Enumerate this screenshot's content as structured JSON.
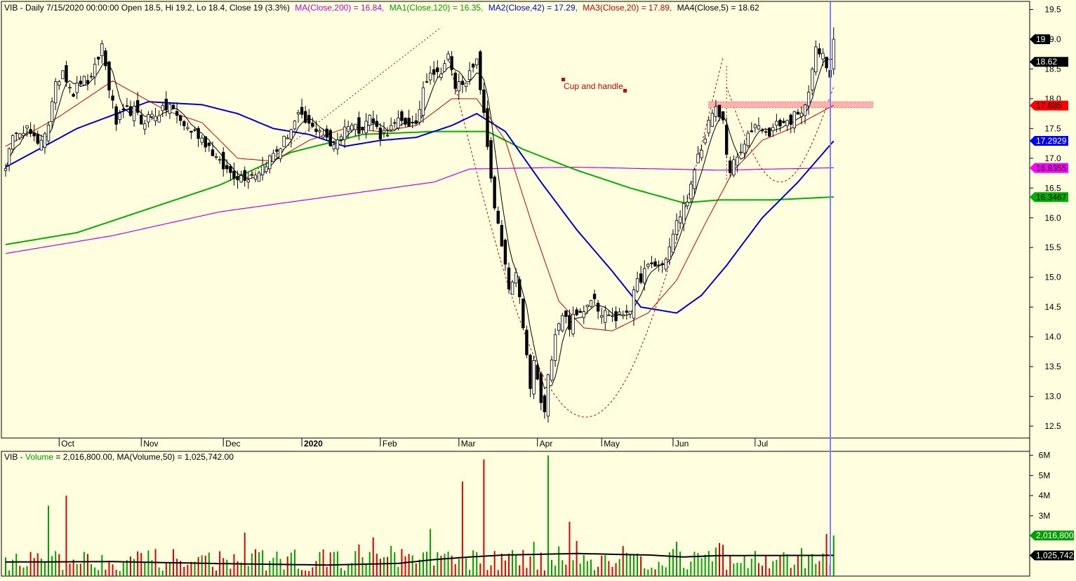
{
  "header": {
    "symbol_info": "VIB - Daily 7/15/2020 00:00:00 Open 18.5, Hi 19.2, Lo 18.4, Close 19 (3.3%)",
    "ma200": "MA(Close,200) = 16.84,",
    "ma120": "MA1(Close,120) = 16.35,",
    "ma42": "MA2(Close,42) = 17.29,",
    "ma20": "MA3(Close,20) = 17.89,",
    "ma5": "MA4(Close,5) = 18.62"
  },
  "volume_header": {
    "prefix": "VIB - ",
    "volume_label": "Volume",
    "volume_text": " = 2,016,800.00, MA(Volume,50) = 1,025,742.00"
  },
  "annotation": {
    "pattern_label": "Cup and handle"
  },
  "price_axis": {
    "ticks": [
      "19.5",
      "19.0",
      "18.5",
      "18.0",
      "17.5",
      "17.0",
      "16.5",
      "16.0",
      "15.5",
      "15.0",
      "14.5",
      "14.0",
      "13.5",
      "13.0",
      "12.5"
    ],
    "markers": [
      {
        "label": "19",
        "value": 19.0,
        "bg": "#000000",
        "fg": "#ffffff"
      },
      {
        "label": "18.62",
        "value": 18.62,
        "bg": "#000000",
        "fg": "#ffffff"
      },
      {
        "label": "17.885",
        "value": 17.885,
        "bg": "#ff0000",
        "fg": "#000000"
      },
      {
        "label": "17.2929",
        "value": 17.2929,
        "bg": "#0000ff",
        "fg": "#ffffff"
      },
      {
        "label": "16.8355",
        "value": 16.8355,
        "bg": "#ff00ff",
        "fg": "#000000"
      },
      {
        "label": "16.3467",
        "value": 16.3467,
        "bg": "#00b000",
        "fg": "#000000"
      }
    ]
  },
  "volume_axis": {
    "ticks": [
      "6M",
      "5M",
      "4M",
      "3M"
    ],
    "markers": [
      {
        "label": "2,016,800",
        "value": 2.0168,
        "bg": "#00a000",
        "fg": "#ffffff"
      },
      {
        "label": "1,025,742",
        "value": 1.0257,
        "bg": "#000000",
        "fg": "#ffffff"
      }
    ]
  },
  "x_axis": {
    "months": [
      "Oct",
      "Nov",
      "Dec",
      "2020",
      "Feb",
      "Mar",
      "Apr",
      "May",
      "Jun",
      "Jul"
    ],
    "month_start_index": [
      15,
      38,
      61,
      83,
      105,
      127,
      149,
      167,
      187,
      210
    ]
  },
  "colors": {
    "background": "#ffffe0",
    "ma200": "#cc00cc",
    "ma120": "#00b000",
    "ma42": "#0000cc",
    "ma20": "#cc0000",
    "ma5": "#000000",
    "volume_up": "#00a000",
    "volume_down": "#dd0000",
    "cursor": "#8080ff"
  },
  "chart_data": {
    "type": "candlestick",
    "title": "VIB - Daily",
    "x_range": [
      "2019-09-10",
      "2020-07-15"
    ],
    "y_range": [
      12.3,
      19.6
    ],
    "volume_range_millions": [
      0,
      6.2
    ],
    "bars": 233,
    "close_anchors": [
      [
        0,
        16.9
      ],
      [
        3,
        17.5
      ],
      [
        6,
        17.5
      ],
      [
        9,
        17.2
      ],
      [
        12,
        17.6
      ],
      [
        14,
        18.2
      ],
      [
        16,
        18.5
      ],
      [
        19,
        18.1
      ],
      [
        21,
        18.3
      ],
      [
        24,
        18.3
      ],
      [
        27,
        18.9
      ],
      [
        29,
        18.2
      ],
      [
        31,
        17.6
      ],
      [
        34,
        17.8
      ],
      [
        36,
        17.8
      ],
      [
        38,
        17.6
      ],
      [
        40,
        17.7
      ],
      [
        44,
        17.8
      ],
      [
        46,
        17.9
      ],
      [
        48,
        17.7
      ],
      [
        51,
        17.5
      ],
      [
        54,
        17.4
      ],
      [
        57,
        17.2
      ],
      [
        60,
        16.9
      ],
      [
        62,
        16.8
      ],
      [
        65,
        16.7
      ],
      [
        68,
        16.7
      ],
      [
        71,
        16.8
      ],
      [
        74,
        17.0
      ],
      [
        77,
        17.2
      ],
      [
        80,
        17.5
      ],
      [
        82,
        17.7
      ],
      [
        84,
        17.6
      ],
      [
        86,
        17.5
      ],
      [
        88,
        17.5
      ],
      [
        91,
        17.2
      ],
      [
        94,
        17.4
      ],
      [
        96,
        17.6
      ],
      [
        99,
        17.5
      ],
      [
        102,
        17.7
      ],
      [
        105,
        17.4
      ],
      [
        108,
        17.5
      ],
      [
        110,
        17.6
      ],
      [
        113,
        17.6
      ],
      [
        115,
        17.5
      ],
      [
        117,
        18.2
      ],
      [
        119,
        18.5
      ],
      [
        121,
        18.4
      ],
      [
        123,
        18.6
      ],
      [
        124,
        18.7
      ],
      [
        126,
        18.2
      ],
      [
        128,
        18.3
      ],
      [
        130,
        18.4
      ],
      [
        132,
        18.6
      ],
      [
        133,
        18.2
      ],
      [
        135,
        17.2
      ],
      [
        137,
        16.2
      ],
      [
        139,
        15.5
      ],
      [
        141,
        14.8
      ],
      [
        143,
        15.0
      ],
      [
        145,
        14.2
      ],
      [
        147,
        13.1
      ],
      [
        148,
        13.6
      ],
      [
        150,
        12.9
      ],
      [
        151,
        12.7
      ],
      [
        152,
        13.3
      ],
      [
        153,
        13.7
      ],
      [
        154,
        14.1
      ],
      [
        156,
        14.4
      ],
      [
        158,
        14.2
      ],
      [
        159,
        14.3
      ],
      [
        161,
        14.4
      ],
      [
        163,
        14.6
      ],
      [
        165,
        14.7
      ],
      [
        166,
        14.5
      ],
      [
        167,
        14.4
      ],
      [
        169,
        14.4
      ],
      [
        171,
        14.3
      ],
      [
        173,
        14.4
      ],
      [
        175,
        14.5
      ],
      [
        177,
        14.9
      ],
      [
        179,
        15.1
      ],
      [
        181,
        15.2
      ],
      [
        184,
        15.2
      ],
      [
        186,
        15.5
      ],
      [
        188,
        15.9
      ],
      [
        190,
        16.2
      ],
      [
        192,
        16.5
      ],
      [
        194,
        17.0
      ],
      [
        196,
        17.3
      ],
      [
        197,
        17.7
      ],
      [
        199,
        17.8
      ],
      [
        201,
        17.6
      ],
      [
        202,
        17.1
      ],
      [
        203,
        16.8
      ],
      [
        205,
        17.0
      ],
      [
        207,
        17.2
      ],
      [
        209,
        17.5
      ],
      [
        211,
        17.6
      ],
      [
        213,
        17.4
      ],
      [
        215,
        17.5
      ],
      [
        217,
        17.6
      ],
      [
        219,
        17.6
      ],
      [
        221,
        17.7
      ],
      [
        223,
        17.7
      ],
      [
        225,
        18.2
      ],
      [
        227,
        18.8
      ],
      [
        229,
        18.7
      ],
      [
        231,
        18.4
      ],
      [
        232,
        19.0
      ]
    ],
    "ma_lines": [
      {
        "name": "MA(Close,200)",
        "value_last": 16.84,
        "anchors": [
          [
            0,
            15.4
          ],
          [
            30,
            15.7
          ],
          [
            60,
            16.1
          ],
          [
            90,
            16.35
          ],
          [
            120,
            16.6
          ],
          [
            130,
            16.82
          ],
          [
            160,
            16.85
          ],
          [
            200,
            16.8
          ],
          [
            232,
            16.84
          ]
        ]
      },
      {
        "name": "MA1(Close,120)",
        "value_last": 16.35,
        "anchors": [
          [
            0,
            15.55
          ],
          [
            20,
            15.75
          ],
          [
            40,
            16.15
          ],
          [
            60,
            16.55
          ],
          [
            80,
            17.1
          ],
          [
            100,
            17.4
          ],
          [
            120,
            17.45
          ],
          [
            135,
            17.45
          ],
          [
            145,
            17.15
          ],
          [
            160,
            16.8
          ],
          [
            175,
            16.5
          ],
          [
            190,
            16.25
          ],
          [
            200,
            16.3
          ],
          [
            215,
            16.3
          ],
          [
            232,
            16.35
          ]
        ]
      },
      {
        "name": "MA2(Close,42)",
        "value_last": 17.29,
        "anchors": [
          [
            0,
            16.85
          ],
          [
            20,
            17.5
          ],
          [
            40,
            17.95
          ],
          [
            55,
            17.9
          ],
          [
            65,
            17.75
          ],
          [
            75,
            17.5
          ],
          [
            85,
            17.4
          ],
          [
            95,
            17.2
          ],
          [
            105,
            17.3
          ],
          [
            115,
            17.35
          ],
          [
            125,
            17.55
          ],
          [
            132,
            17.75
          ],
          [
            140,
            17.45
          ],
          [
            150,
            16.6
          ],
          [
            160,
            15.8
          ],
          [
            170,
            15.1
          ],
          [
            178,
            14.5
          ],
          [
            188,
            14.4
          ],
          [
            195,
            14.7
          ],
          [
            202,
            15.2
          ],
          [
            212,
            16.0
          ],
          [
            222,
            16.6
          ],
          [
            232,
            17.29
          ]
        ]
      },
      {
        "name": "MA3(Close,20)",
        "value_last": 17.89,
        "anchors": [
          [
            0,
            17.2
          ],
          [
            15,
            17.7
          ],
          [
            30,
            18.3
          ],
          [
            45,
            17.8
          ],
          [
            55,
            17.6
          ],
          [
            65,
            17.0
          ],
          [
            75,
            16.95
          ],
          [
            85,
            17.3
          ],
          [
            95,
            17.5
          ],
          [
            105,
            17.45
          ],
          [
            115,
            17.55
          ],
          [
            125,
            18.0
          ],
          [
            132,
            18.0
          ],
          [
            140,
            17.3
          ],
          [
            148,
            15.8
          ],
          [
            155,
            14.6
          ],
          [
            162,
            14.15
          ],
          [
            170,
            14.1
          ],
          [
            180,
            14.4
          ],
          [
            188,
            14.95
          ],
          [
            196,
            15.9
          ],
          [
            204,
            16.8
          ],
          [
            212,
            17.3
          ],
          [
            220,
            17.5
          ],
          [
            232,
            17.89
          ]
        ]
      },
      {
        "name": "MA4(Close,5)",
        "value_last": 18.62
      }
    ],
    "volume_ma50_anchors": [
      [
        0,
        0.7
      ],
      [
        30,
        0.72
      ],
      [
        60,
        0.62
      ],
      [
        90,
        0.55
      ],
      [
        110,
        0.63
      ],
      [
        120,
        0.82
      ],
      [
        130,
        0.95
      ],
      [
        140,
        1.05
      ],
      [
        160,
        1.12
      ],
      [
        180,
        1.05
      ],
      [
        190,
        0.95
      ],
      [
        200,
        1.02
      ],
      [
        232,
        1.03
      ]
    ],
    "volume_spikes_millions": [
      [
        12,
        3.5
      ],
      [
        17,
        4.0
      ],
      [
        128,
        4.7
      ],
      [
        134,
        5.8
      ],
      [
        152,
        6.0
      ],
      [
        158,
        2.7
      ]
    ],
    "last_volume_millions": 2.0168,
    "last_volume_ma50_millions": 1.0257
  }
}
